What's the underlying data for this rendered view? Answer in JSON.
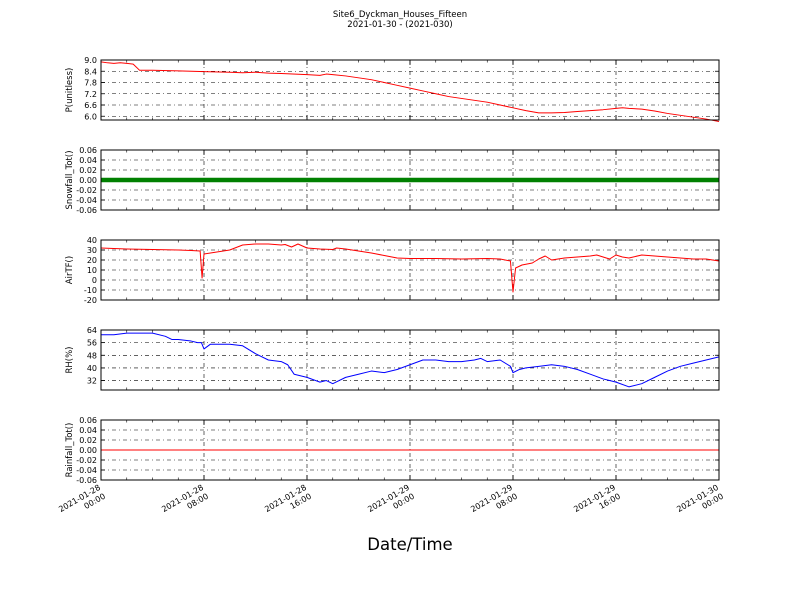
{
  "figure": {
    "title": "Site6_Dyckman_Houses_Fifteen",
    "subtitle": "2021-01-30 - (2021-030)",
    "xlabel": "Date/Time",
    "x_ticks": [
      "2021-01-28 00:00",
      "2021-01-28 08:00",
      "2021-01-28 16:00",
      "2021-01-29 00:00",
      "2021-01-29 08:00",
      "2021-01-29 16:00",
      "2021-01-30 00:00"
    ],
    "x_tick_lines": [
      [
        "2021-01-28",
        "00:00"
      ],
      [
        "2021-01-28",
        "08:00"
      ],
      [
        "2021-01-28",
        "16:00"
      ],
      [
        "2021-01-29",
        "00:00"
      ],
      [
        "2021-01-29",
        "08:00"
      ],
      [
        "2021-01-29",
        "16:00"
      ],
      [
        "2021-01-30",
        "00:00"
      ]
    ],
    "x_range_hours": [
      0,
      48
    ]
  },
  "chart_data": [
    {
      "type": "line",
      "ylabel": "P(unitless)",
      "ylim": [
        5.8,
        9.0
      ],
      "yticks": [
        "9.0",
        "8.4",
        "7.8",
        "7.2",
        "6.6",
        "6.0"
      ],
      "ytick_values": [
        9.0,
        8.4,
        7.8,
        7.2,
        6.6,
        6.0
      ],
      "grid": true,
      "series": [
        {
          "color": "#ff0000",
          "x": [
            0,
            0.5,
            1,
            1.5,
            2,
            2.5,
            3,
            4,
            6,
            8,
            10,
            11,
            12,
            13,
            14,
            16,
            17,
            17.5,
            18,
            19,
            20,
            21,
            22,
            23,
            24,
            25,
            26,
            27,
            28,
            29,
            30,
            31,
            32,
            33,
            34,
            35,
            36,
            37,
            38,
            39,
            40,
            40.5,
            41,
            42,
            43,
            44,
            45,
            46,
            47,
            48
          ],
          "y": [
            8.9,
            8.85,
            8.82,
            8.85,
            8.82,
            8.78,
            8.45,
            8.45,
            8.42,
            8.38,
            8.35,
            8.32,
            8.35,
            8.3,
            8.28,
            8.22,
            8.18,
            8.25,
            8.22,
            8.15,
            8.05,
            7.95,
            7.8,
            7.65,
            7.5,
            7.35,
            7.2,
            7.05,
            6.95,
            6.85,
            6.75,
            6.6,
            6.45,
            6.3,
            6.18,
            6.18,
            6.2,
            6.25,
            6.3,
            6.35,
            6.42,
            6.45,
            6.42,
            6.38,
            6.28,
            6.15,
            6.05,
            5.95,
            5.85,
            5.72
          ]
        }
      ]
    },
    {
      "type": "line",
      "ylabel": "Snowfall_Tot()",
      "ylim": [
        -0.06,
        0.06
      ],
      "yticks": [
        "0.06",
        "0.04",
        "0.02",
        "0.00",
        "-0.02",
        "-0.04",
        "-0.06"
      ],
      "ytick_values": [
        0.06,
        0.04,
        0.02,
        0.0,
        -0.02,
        -0.04,
        -0.06
      ],
      "grid": true,
      "series": [
        {
          "color": "#008000",
          "marker": true,
          "x": [
            0,
            48
          ],
          "y": [
            0.0,
            0.0
          ]
        }
      ]
    },
    {
      "type": "line",
      "ylabel": "AirTF()",
      "ylim": [
        -20,
        40
      ],
      "yticks": [
        "40",
        "30",
        "20",
        "10",
        "0",
        "-10",
        "-20"
      ],
      "ytick_values": [
        40,
        30,
        20,
        10,
        0,
        -10,
        -20
      ],
      "grid": true,
      "series": [
        {
          "color": "#ff0000",
          "x": [
            0,
            1,
            2,
            3,
            4,
            5,
            6,
            7,
            7.7,
            7.85,
            8.0,
            8.5,
            9,
            10,
            11,
            12,
            13,
            14,
            14.3,
            14.8,
            15.3,
            16,
            17,
            18,
            18.3,
            19,
            20,
            21,
            22,
            23,
            24,
            26,
            28,
            30,
            31,
            31.8,
            32.0,
            32.2,
            32.7,
            33.5,
            34,
            34.5,
            35,
            36,
            37,
            38,
            38.5,
            39,
            39.5,
            40,
            40.5,
            41,
            42,
            43,
            44,
            45,
            46,
            47,
            48
          ],
          "y": [
            32,
            31.5,
            31,
            30.8,
            30.5,
            30.3,
            30,
            29.5,
            29,
            2,
            26,
            27,
            28,
            30,
            35,
            36,
            36,
            35,
            35.5,
            33,
            36,
            32,
            31,
            30.5,
            32,
            31,
            29,
            27,
            24.5,
            22,
            21.5,
            21.5,
            21,
            21.5,
            21,
            19,
            -12,
            12,
            15,
            17,
            21,
            24,
            20,
            22,
            23,
            24,
            25,
            23,
            21,
            25,
            23,
            22,
            25,
            24,
            23,
            22,
            21,
            21,
            19
          ]
        }
      ]
    },
    {
      "type": "line",
      "ylabel": "RH(%)",
      "ylim": [
        26,
        64
      ],
      "yticks": [
        "64",
        "56",
        "48",
        "40",
        "32"
      ],
      "ytick_values": [
        64,
        56,
        48,
        40,
        32
      ],
      "grid": true,
      "series": [
        {
          "color": "#0000ff",
          "x": [
            0,
            1,
            2,
            3,
            4,
            5,
            5.5,
            6,
            7,
            7.5,
            7.8,
            8.0,
            8.5,
            9,
            10,
            11,
            12,
            13,
            14,
            14.5,
            15,
            16,
            17,
            17.5,
            18,
            19,
            20,
            21,
            22,
            23,
            24,
            25,
            26,
            27,
            28,
            29,
            29.5,
            30,
            31,
            31.8,
            32.0,
            32.5,
            33,
            34,
            35,
            36,
            37,
            38,
            39,
            39.5,
            40,
            41,
            42,
            43,
            44,
            45,
            46,
            47,
            48
          ],
          "y": [
            61,
            61,
            62,
            62,
            62,
            60,
            58,
            58,
            57,
            56,
            56,
            52,
            55,
            55,
            55,
            54,
            49,
            45,
            44,
            42,
            36,
            34,
            31,
            32,
            30,
            34,
            36,
            38,
            37,
            39,
            42,
            45,
            45,
            44,
            44,
            45,
            46,
            44,
            45,
            41,
            37,
            39,
            40,
            41,
            42,
            41,
            39,
            36,
            33,
            32,
            31,
            28,
            30,
            34,
            38,
            41,
            43,
            45,
            47
          ]
        }
      ]
    },
    {
      "type": "line",
      "ylabel": "Rainfall_Tot()",
      "ylim": [
        -0.06,
        0.06
      ],
      "yticks": [
        "0.06",
        "0.04",
        "0.02",
        "0.00",
        "-0.02",
        "-0.04",
        "-0.06"
      ],
      "ytick_values": [
        0.06,
        0.04,
        0.02,
        0.0,
        -0.02,
        -0.04,
        -0.06
      ],
      "grid": true,
      "series": [
        {
          "color": "#ff0000",
          "x": [
            0,
            48
          ],
          "y": [
            0.0,
            0.0
          ]
        }
      ]
    }
  ]
}
